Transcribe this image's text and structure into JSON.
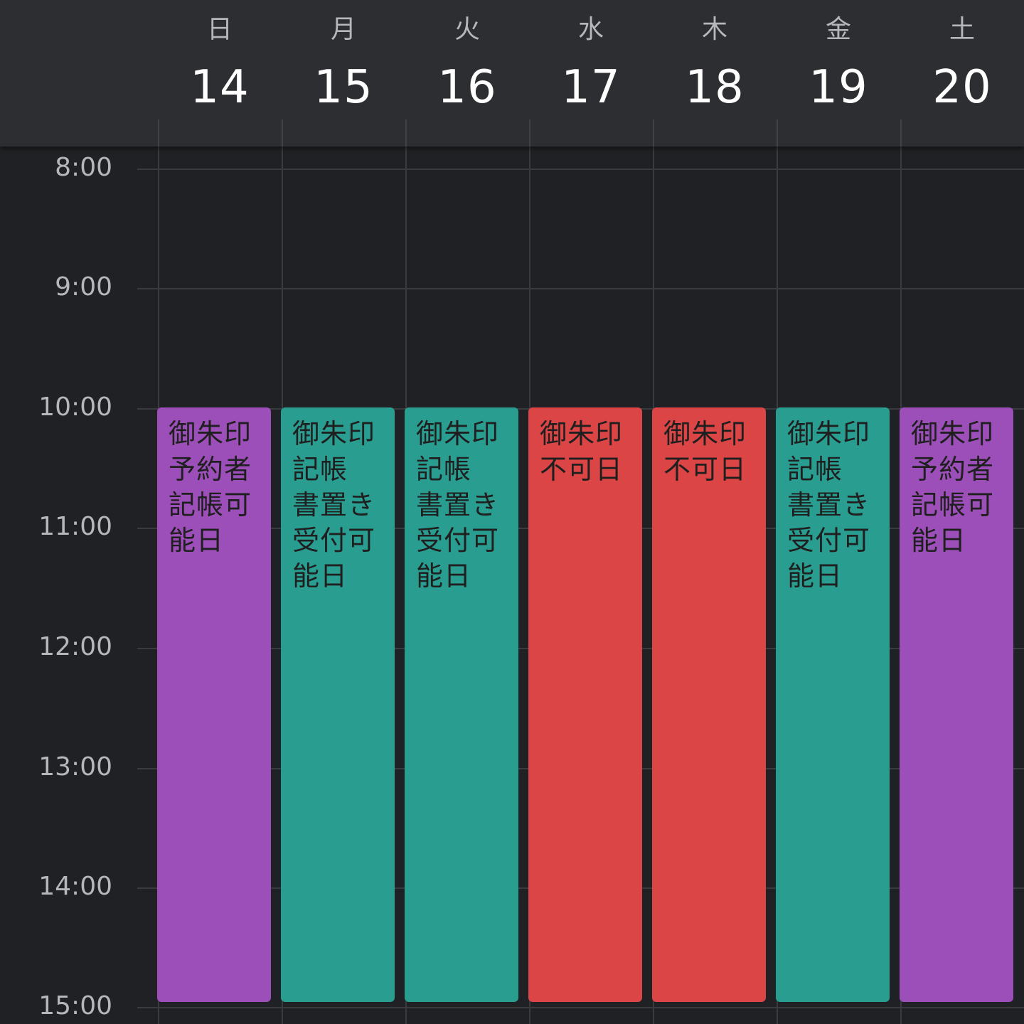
{
  "calendar": {
    "days": [
      {
        "weekday": "日",
        "date": "14"
      },
      {
        "weekday": "月",
        "date": "15"
      },
      {
        "weekday": "火",
        "date": "16"
      },
      {
        "weekday": "水",
        "date": "17"
      },
      {
        "weekday": "木",
        "date": "18"
      },
      {
        "weekday": "金",
        "date": "19"
      },
      {
        "weekday": "土",
        "date": "20"
      }
    ],
    "times": [
      "8:00",
      "9:00",
      "10:00",
      "11:00",
      "12:00",
      "13:00",
      "14:00",
      "15:00"
    ],
    "events": [
      {
        "title": "御朱印\n予約者\n記帳可\n能日",
        "color": "#9c4fb8",
        "start": "10:00",
        "end": "15:00"
      },
      {
        "title": "御朱印\n記帳\n書置き\n受付可\n能日",
        "color": "#2a9d91",
        "start": "10:00",
        "end": "15:00"
      },
      {
        "title": "御朱印\n記帳\n書置き\n受付可\n能日",
        "color": "#2a9d91",
        "start": "10:00",
        "end": "15:00"
      },
      {
        "title": "御朱印\n不可日",
        "color": "#db4545",
        "start": "10:00",
        "end": "15:00"
      },
      {
        "title": "御朱印\n不可日",
        "color": "#db4545",
        "start": "10:00",
        "end": "15:00"
      },
      {
        "title": "御朱印\n記帳\n書置き\n受付可\n能日",
        "color": "#2a9d91",
        "start": "10:00",
        "end": "15:00"
      },
      {
        "title": "御朱印\n予約者\n記帳可\n能日",
        "color": "#9c4fb8",
        "start": "10:00",
        "end": "15:00"
      }
    ]
  }
}
